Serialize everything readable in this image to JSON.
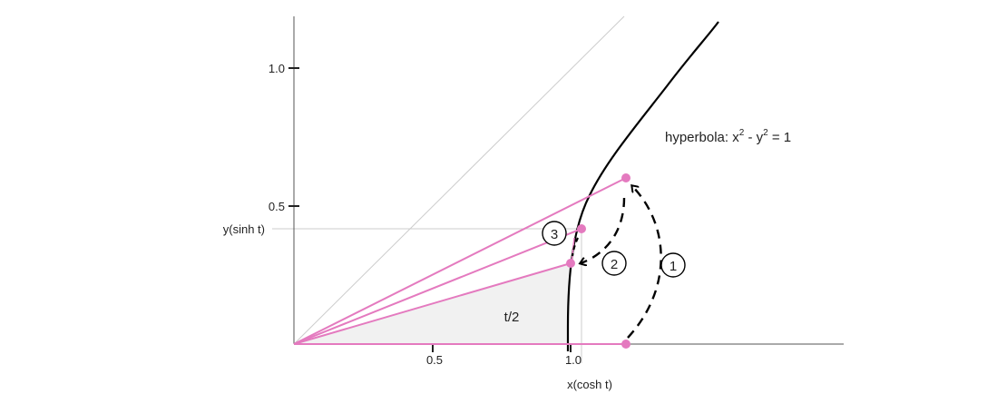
{
  "x_axis": {
    "ticks": [
      {
        "value": 0.5,
        "label": "0.5"
      },
      {
        "value": 1.0,
        "label": "1.0"
      }
    ],
    "axis_label": "x(cosh t)"
  },
  "y_axis": {
    "ticks": [
      {
        "value": 0.5,
        "label": "0.5"
      },
      {
        "value": 1.0,
        "label": "1.0"
      }
    ],
    "axis_label": "y(sinh t)"
  },
  "hyperbola_label": {
    "base": "hyperbola: x",
    "exp1": "2",
    "mid": " - y",
    "exp2": "2",
    "tail": " = 1"
  },
  "area_label": "t/2",
  "steps": [
    {
      "label": "1"
    },
    {
      "label": "2"
    },
    {
      "label": "3"
    }
  ],
  "colors": {
    "accent": "#e47abf",
    "curve": "#000000",
    "axis": "#555555",
    "diagonal": "#cccccc",
    "guide": "#cccccc",
    "area_fill": "#f1f1f1"
  },
  "points": {
    "start": {
      "x": 1.2,
      "y": 0.0
    },
    "top": {
      "x": 1.2,
      "y": 0.6
    },
    "mid": {
      "x": 1.02,
      "y": 0.3
    },
    "current": {
      "x": 1.06,
      "y": 0.42
    }
  }
}
